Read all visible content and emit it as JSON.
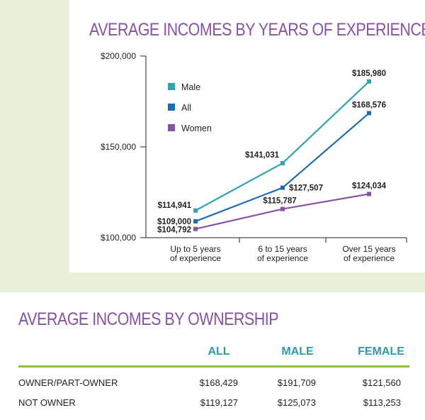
{
  "title": "AVERAGE INCOMES BY YEARS OF EXPERIENCE",
  "chart_data": {
    "type": "line",
    "title": "AVERAGE INCOMES BY YEARS OF EXPERIENCE",
    "categories": [
      [
        "Up to 5 years",
        "of experience"
      ],
      [
        "6 to 15 years",
        "of experience"
      ],
      [
        "Over 15 years",
        "of experience"
      ]
    ],
    "ylim": [
      100000,
      200000
    ],
    "yticks": [
      100000,
      150000,
      200000
    ],
    "ytick_labels": [
      "$100,000",
      "$150,000",
      "$200,000"
    ],
    "legend_position": "top-left",
    "series": [
      {
        "name": "Male",
        "color": "#2fa4b3",
        "values": [
          114941,
          141031,
          185980
        ],
        "labels": [
          "$114,941",
          "$141,031",
          "$185,980"
        ]
      },
      {
        "name": "All",
        "color": "#1f6bb5",
        "values": [
          109000,
          127507,
          168576
        ],
        "labels": [
          "$109,000",
          "$127,507",
          "$168,576"
        ]
      },
      {
        "name": "Women",
        "color": "#8a52a6",
        "values": [
          104792,
          115787,
          124034
        ],
        "labels": [
          "$104,792",
          "$115,787",
          "$124,034"
        ]
      }
    ]
  },
  "ownership": {
    "title": "AVERAGE INCOMES BY OWNERSHIP",
    "header_color": "#2b9bab",
    "rule_color": "#8cc33f",
    "columns": [
      "ALL",
      "MALE",
      "FEMALE"
    ],
    "rows": [
      {
        "label": "OWNER/PART-OWNER",
        "values": [
          "$168,429",
          "$191,709",
          "$121,560"
        ]
      },
      {
        "label": "NOT OWNER",
        "values": [
          "$119,127",
          "$125,073",
          "$113,253"
        ]
      }
    ]
  }
}
